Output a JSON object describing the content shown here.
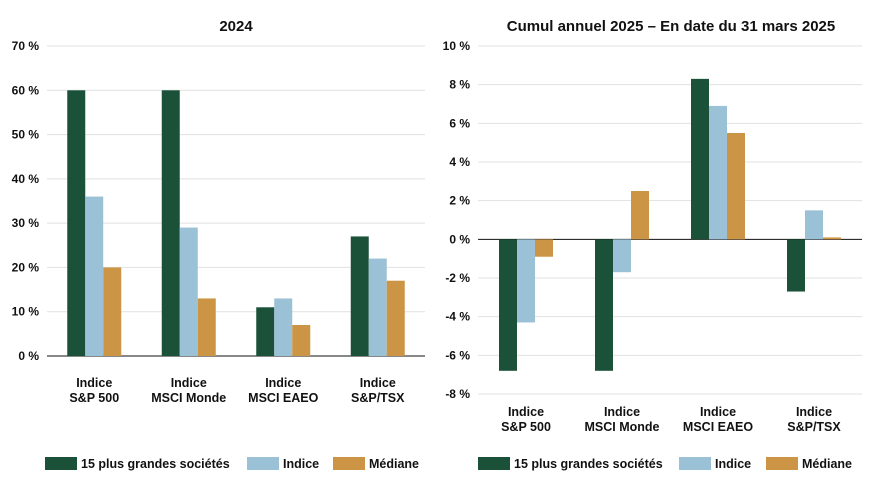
{
  "chart_data": [
    {
      "type": "bar",
      "title": "2024",
      "categories": [
        [
          "Indice",
          "S&P 500"
        ],
        [
          "Indice",
          "MSCI Monde"
        ],
        [
          "Indice",
          "MSCI EAEO"
        ],
        [
          "Indice",
          "S&P/TSX"
        ]
      ],
      "series": [
        {
          "name": "15 plus grandes sociétés",
          "color": "#1b5138",
          "values": [
            60,
            60,
            11,
            27
          ]
        },
        {
          "name": "Indice",
          "color": "#9bc1d7",
          "values": [
            36,
            29,
            13,
            22
          ]
        },
        {
          "name": "Médiane",
          "color": "#cc9445",
          "values": [
            20,
            13,
            7,
            17
          ]
        }
      ],
      "ylim": [
        0,
        70
      ],
      "yticks": [
        0,
        10,
        20,
        30,
        40,
        50,
        60,
        70
      ],
      "ytick_labels": [
        "0 %",
        "10 %",
        "20 %",
        "30 %",
        "40 %",
        "50 %",
        "60 %",
        "70 %"
      ],
      "grid": true,
      "legend": "bottom"
    },
    {
      "type": "bar",
      "title": "Cumul annuel 2025 – En date du 31 mars 2025",
      "categories": [
        [
          "Indice",
          "S&P 500"
        ],
        [
          "Indice",
          "MSCI Monde"
        ],
        [
          "Indice",
          "MSCI EAEO"
        ],
        [
          "Indice",
          "S&P/TSX"
        ]
      ],
      "series": [
        {
          "name": "15 plus grandes sociétés",
          "color": "#1b5138",
          "values": [
            -6.8,
            -6.8,
            8.3,
            -2.7
          ]
        },
        {
          "name": "Indice",
          "color": "#9bc1d7",
          "values": [
            -4.3,
            -1.7,
            6.9,
            1.5
          ]
        },
        {
          "name": "Médiane",
          "color": "#cc9445",
          "values": [
            -0.9,
            2.5,
            5.5,
            0.1
          ]
        }
      ],
      "ylim": [
        -8,
        10
      ],
      "yticks": [
        -8,
        -6,
        -4,
        -2,
        0,
        2,
        4,
        6,
        8,
        10
      ],
      "ytick_labels": [
        "-8 %",
        "-6 %",
        "-4 %",
        "-2 %",
        "0 %",
        "2 %",
        "4 %",
        "6 %",
        "8 %",
        "10 %"
      ],
      "grid": true,
      "legend": "bottom"
    }
  ]
}
